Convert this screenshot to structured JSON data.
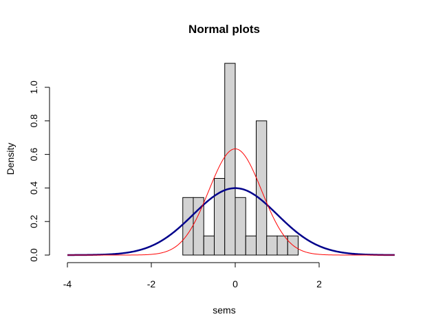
{
  "chart_data": {
    "type": "bar",
    "title": "Normal plots",
    "xlabel": "sems",
    "ylabel": "Density",
    "xlim": [
      -4,
      3.8
    ],
    "ylim": [
      0,
      1.15
    ],
    "x_ticks": [
      -4,
      -2,
      0,
      2
    ],
    "y_ticks": [
      0.0,
      0.2,
      0.4,
      0.6,
      0.8,
      1.0
    ],
    "y_tick_labels": [
      "0.0",
      "0.2",
      "0.4",
      "0.6",
      "0.8",
      "1.0"
    ],
    "x_tick_labels": [
      "-4",
      "-2",
      "0",
      "2"
    ],
    "histogram": {
      "bin_width": 0.25,
      "bin_starts": [
        -1.25,
        -1.0,
        -0.75,
        -0.5,
        -0.25,
        0.0,
        0.25,
        0.5,
        0.75,
        1.0,
        1.25
      ],
      "density": [
        0.343,
        0.343,
        0.114,
        0.457,
        1.143,
        0.343,
        0.114,
        0.8,
        0.114,
        0.114,
        0.114
      ],
      "fill": "#d3d3d3"
    },
    "series": [
      {
        "type": "line",
        "distribution": "normal",
        "mean": 0,
        "sd": 1,
        "color": "#00008b",
        "line_width": 2.5
      },
      {
        "type": "line",
        "distribution": "normal",
        "mean": 0,
        "sd": 0.63,
        "color": "#ff0000",
        "line_width": 1
      }
    ],
    "grid": false,
    "legend": "none"
  }
}
